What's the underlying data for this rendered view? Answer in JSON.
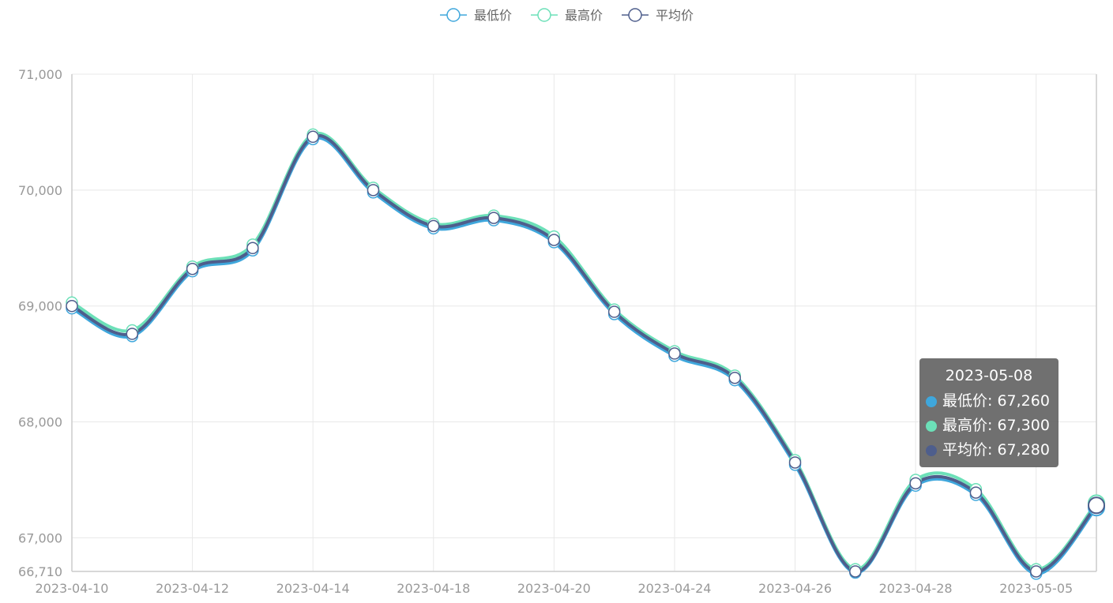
{
  "chart_data": {
    "type": "line",
    "x": [
      "2023-04-10",
      "2023-04-11",
      "2023-04-12",
      "2023-04-13",
      "2023-04-14",
      "2023-04-17",
      "2023-04-18",
      "2023-04-19",
      "2023-04-20",
      "2023-04-21",
      "2023-04-24",
      "2023-04-25",
      "2023-04-26",
      "2023-04-27",
      "2023-04-28",
      "2023-05-04",
      "2023-05-05",
      "2023-05-08"
    ],
    "x_tick_labels": [
      "2023-04-10",
      "2023-04-12",
      "2023-04-14",
      "2023-04-18",
      "2023-04-20",
      "2023-04-24",
      "2023-04-26",
      "2023-04-28",
      "2023-05-05"
    ],
    "series": [
      {
        "name": "最低价",
        "color": "#3fa7dc",
        "values": [
          68980,
          68740,
          69300,
          69480,
          70440,
          69980,
          69670,
          69740,
          69550,
          68930,
          68570,
          68360,
          67630,
          66700,
          67450,
          67370,
          66690,
          67260
        ]
      },
      {
        "name": "最高价",
        "color": "#6ce0b8",
        "values": [
          69030,
          68790,
          69340,
          69530,
          70480,
          70020,
          69710,
          69780,
          69600,
          68970,
          68610,
          68400,
          67670,
          66730,
          67500,
          67420,
          66730,
          67300
        ]
      },
      {
        "name": "平均价",
        "color": "#4e5e8c",
        "values": [
          69000,
          68760,
          69320,
          69500,
          70460,
          70000,
          69690,
          69760,
          69570,
          68950,
          68590,
          68380,
          67650,
          66710,
          67470,
          67390,
          66710,
          67280
        ]
      }
    ],
    "y_ticks": [
      66710,
      67000,
      68000,
      69000,
      70000,
      71000
    ],
    "ylim": [
      66710,
      71000
    ],
    "grid": true,
    "legend": "top-center",
    "tooltip": {
      "title": "2023-05-08",
      "rows": [
        {
          "label": "最低价: 67,260",
          "color": "#3fa7dc"
        },
        {
          "label": "最高价: 67,300",
          "color": "#6ce0b8"
        },
        {
          "label": "平均价: 67,280",
          "color": "#4e5e8c"
        }
      ]
    }
  }
}
